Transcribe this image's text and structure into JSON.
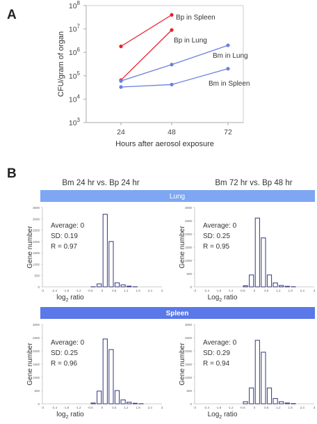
{
  "panel_labels": {
    "a": "A",
    "b": "B"
  },
  "colors": {
    "red": "#e8202a",
    "blue": "#6a7fe0",
    "bar_edge": "#34347a",
    "lung_band": "#7ea6f2",
    "spleen_band": "#5a78e8"
  },
  "chart_data": [
    {
      "type": "line",
      "panel": "A",
      "xlabel": "Hours after aerosol exposure",
      "ylabel": "CFU/gram of organ",
      "x_ticks": [
        "24",
        "48",
        "72"
      ],
      "y_scale": "log",
      "y_tick_labels": [
        "10^3",
        "10^4",
        "10^5",
        "10^6",
        "10^7",
        "10^8"
      ],
      "ylim": [
        1000,
        100000000
      ],
      "grid": false,
      "series": [
        {
          "name": "Bp in Spleen",
          "color": "#e8202a",
          "x": [
            24,
            48
          ],
          "y": [
            1800000,
            40000000
          ]
        },
        {
          "name": "Bp in Lung",
          "color": "#e8202a",
          "x": [
            24,
            48
          ],
          "y": [
            65000,
            9000000
          ]
        },
        {
          "name": "Bm in Lung",
          "color": "#6a7fe0",
          "x": [
            24,
            48,
            72
          ],
          "y": [
            60000,
            300000,
            2000000
          ]
        },
        {
          "name": "Bm in Spleen",
          "color": "#6a7fe0",
          "x": [
            24,
            48,
            72
          ],
          "y": [
            33000,
            42000,
            200000
          ]
        }
      ]
    },
    {
      "type": "bar",
      "panel": "B",
      "group": "Lung",
      "column_title": "Bm 24 hr vs. Bp 24 hr",
      "xlabel": "log2 ratio",
      "ylabel": "Gene number",
      "x_tick_labels": [
        "-3",
        "-2.4",
        "-1.8",
        "-1.2",
        "-0.6",
        "0",
        "0.6",
        "1.2",
        "1.8",
        "2.4",
        "3"
      ],
      "y_tick_labels": [
        "0",
        "500",
        "1000",
        "1500",
        "2000",
        "2500",
        "3000",
        "3500"
      ],
      "ylim": [
        0,
        3500
      ],
      "bin_width": 0.3,
      "bins": [
        -3.0,
        -2.7,
        -2.4,
        -2.1,
        -1.8,
        -1.5,
        -1.2,
        -0.9,
        -0.6,
        -0.3,
        0.0,
        0.3,
        0.6,
        0.9,
        1.2,
        1.5,
        1.8,
        2.1,
        2.4,
        2.7
      ],
      "values": [
        0,
        0,
        0,
        0,
        0,
        0,
        0,
        0,
        5,
        130,
        3200,
        2000,
        180,
        90,
        30,
        5,
        0,
        0,
        0,
        0
      ],
      "stats": [
        "Average: 0",
        "SD: 0.19",
        "R = 0.97"
      ]
    },
    {
      "type": "bar",
      "panel": "B",
      "group": "Lung",
      "column_title": "Bm 72 hr vs. Bp 48 hr",
      "xlabel": "Log2 ratio",
      "ylabel": "Gene number",
      "x_tick_labels": [
        "-3",
        "-2.4",
        "-1.8",
        "-1.2",
        "-0.6",
        "0",
        "0.6",
        "1.2",
        "1.8",
        "2.4",
        "3"
      ],
      "y_tick_labels": [
        "0",
        "500",
        "1000",
        "1500",
        "2000",
        "2500",
        "3000"
      ],
      "ylim": [
        0,
        3000
      ],
      "bin_width": 0.3,
      "bins": [
        -3.0,
        -2.7,
        -2.4,
        -2.1,
        -1.8,
        -1.5,
        -1.2,
        -0.9,
        -0.6,
        -0.3,
        0.0,
        0.3,
        0.6,
        0.9,
        1.2,
        1.5,
        1.8,
        2.1,
        2.4,
        2.7
      ],
      "values": [
        0,
        0,
        0,
        0,
        0,
        0,
        0,
        0,
        40,
        450,
        2600,
        1850,
        450,
        150,
        50,
        20,
        5,
        0,
        0,
        0
      ],
      "stats": [
        "Average: 0",
        "SD: 0.25",
        "R = 0.95"
      ]
    },
    {
      "type": "bar",
      "panel": "B",
      "group": "Spleen",
      "column_title": "Bm 24 hr vs. Bp 24 hr",
      "xlabel": "log2 ratio",
      "ylabel": "Gene number",
      "x_tick_labels": [
        "-3",
        "-2.4",
        "-1.8",
        "-1.2",
        "-0.6",
        "0",
        "0.6",
        "1.2",
        "1.8",
        "2.4",
        "3"
      ],
      "y_tick_labels": [
        "0",
        "500",
        "1000",
        "1500",
        "2000",
        "2500",
        "3000"
      ],
      "ylim": [
        0,
        3000
      ],
      "bin_width": 0.3,
      "bins": [
        -3.0,
        -2.7,
        -2.4,
        -2.1,
        -1.8,
        -1.5,
        -1.2,
        -0.9,
        -0.6,
        -0.3,
        0.0,
        0.3,
        0.6,
        0.9,
        1.2,
        1.5,
        1.8,
        2.1,
        2.4,
        2.7
      ],
      "values": [
        0,
        0,
        0,
        0,
        0,
        0,
        0,
        0,
        30,
        480,
        2450,
        2050,
        500,
        150,
        60,
        20,
        5,
        0,
        0,
        0
      ],
      "stats": [
        "Average: 0",
        "SD: 0.25",
        "R = 0.96"
      ]
    },
    {
      "type": "bar",
      "panel": "B",
      "group": "Spleen",
      "column_title": "Bm 72 hr vs. Bp 48 hr",
      "xlabel": "Log2 ratio",
      "ylabel": "Gene number",
      "x_tick_labels": [
        "-3",
        "-2.4",
        "-1.8",
        "-1.2",
        "-0.6",
        "0",
        "0.6",
        "1.2",
        "1.8",
        "2.4",
        "3"
      ],
      "y_tick_labels": [
        "0",
        "500",
        "1000",
        "1500",
        "2000",
        "2500",
        "3000"
      ],
      "ylim": [
        0,
        3000
      ],
      "bin_width": 0.3,
      "bins": [
        -3.0,
        -2.7,
        -2.4,
        -2.1,
        -1.8,
        -1.5,
        -1.2,
        -0.9,
        -0.6,
        -0.3,
        0.0,
        0.3,
        0.6,
        0.9,
        1.2,
        1.5,
        1.8,
        2.1,
        2.4,
        2.7
      ],
      "values": [
        0,
        0,
        0,
        0,
        0,
        0,
        0,
        0,
        80,
        600,
        2400,
        1950,
        600,
        200,
        80,
        30,
        10,
        0,
        0,
        0
      ],
      "stats": [
        "Average: 0",
        "SD: 0.29",
        "R = 0.94"
      ]
    }
  ],
  "bands": {
    "lung": "Lung",
    "spleen": "Spleen"
  }
}
